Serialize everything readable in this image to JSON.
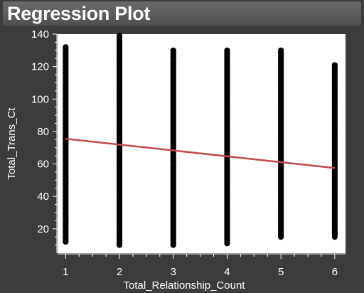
{
  "window": {
    "title": "Regression Plot"
  },
  "chart_data": {
    "type": "scatter",
    "title": "Regression Plot",
    "xlabel": "Total_Relationship_Count",
    "ylabel": "Total_Trans_Ct",
    "xlim": [
      0.85,
      6.2
    ],
    "ylim": [
      5,
      140
    ],
    "x_ticks": [
      "1",
      "2",
      "3",
      "4",
      "5",
      "6"
    ],
    "y_ticks": [
      "20",
      "40",
      "60",
      "80",
      "100",
      "120",
      "140"
    ],
    "grid": false,
    "point_color": "#000000",
    "line_color": "#c0494b",
    "background": "#ffffff",
    "series": [
      {
        "x": 1,
        "y_min": 12,
        "y_max": 132,
        "y": [
          12,
          15,
          18,
          21,
          24,
          27,
          30,
          33,
          36,
          40,
          44,
          48,
          52,
          56,
          60,
          64,
          68,
          72,
          76,
          80,
          84,
          88,
          92,
          96,
          100,
          104,
          108,
          112,
          116,
          120,
          124,
          128,
          132
        ]
      },
      {
        "x": 2,
        "y_min": 10,
        "y_max": 139,
        "y": [
          10,
          13,
          16,
          19,
          22,
          26,
          30,
          34,
          38,
          42,
          46,
          50,
          54,
          58,
          62,
          66,
          70,
          74,
          78,
          82,
          86,
          90,
          94,
          98,
          102,
          106,
          110,
          114,
          118,
          122,
          126,
          130,
          132,
          139
        ]
      },
      {
        "x": 3,
        "y_min": 10,
        "y_max": 130,
        "y": [
          10,
          13,
          16,
          19,
          22,
          26,
          30,
          34,
          38,
          42,
          46,
          50,
          54,
          58,
          62,
          66,
          70,
          74,
          78,
          82,
          86,
          90,
          94,
          98,
          102,
          106,
          110,
          114,
          118,
          122,
          126,
          130
        ]
      },
      {
        "x": 4,
        "y_min": 11,
        "y_max": 130,
        "y": [
          11,
          15,
          18,
          21,
          24,
          28,
          32,
          36,
          40,
          44,
          48,
          52,
          56,
          60,
          64,
          68,
          72,
          76,
          80,
          84,
          88,
          92,
          96,
          100,
          104,
          108,
          112,
          116,
          120,
          124,
          127,
          130
        ]
      },
      {
        "x": 5,
        "y_min": 15,
        "y_max": 130,
        "y": [
          15,
          18,
          22,
          26,
          30,
          34,
          38,
          42,
          46,
          50,
          54,
          58,
          62,
          66,
          70,
          74,
          78,
          82,
          86,
          90,
          94,
          98,
          102,
          106,
          110,
          114,
          118,
          122,
          125,
          130
        ]
      },
      {
        "x": 6,
        "y_min": 15,
        "y_max": 121,
        "y": [
          15,
          18,
          22,
          26,
          30,
          34,
          38,
          42,
          46,
          50,
          54,
          58,
          62,
          66,
          70,
          74,
          78,
          82,
          86,
          90,
          94,
          98,
          102,
          106,
          110,
          114,
          118,
          121
        ]
      }
    ],
    "regression_line": {
      "x": [
        1,
        6
      ],
      "y": [
        75.5,
        57.5
      ]
    }
  }
}
